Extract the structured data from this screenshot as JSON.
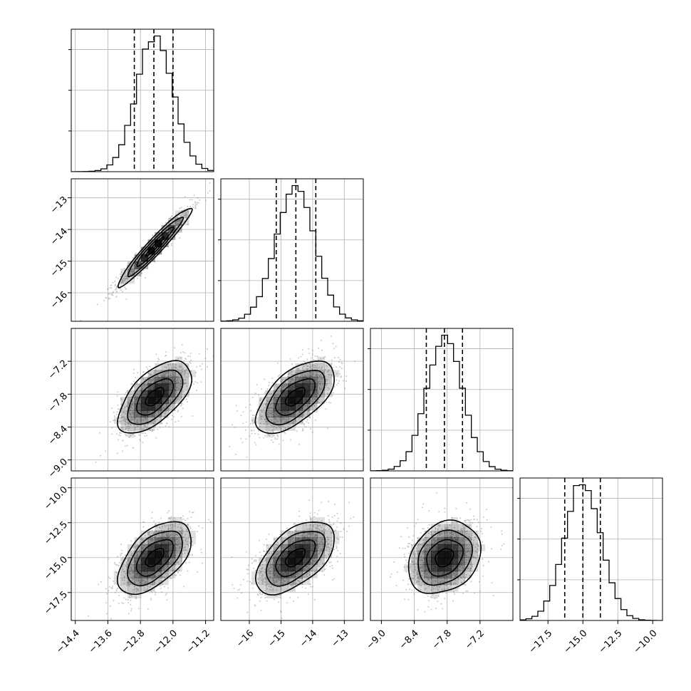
{
  "chart_data": {
    "type": "corner",
    "variables": [
      {
        "range": [
          -14.5,
          -11.0
        ],
        "ticks": [
          -14.4,
          -13.6,
          -12.8,
          -12.0,
          -11.2
        ],
        "tick_labels": [
          "−14.4",
          "−13.6",
          "−12.8",
          "−12.0",
          "−11.2"
        ],
        "mean": -12.45,
        "sd": 0.45,
        "quantiles": [
          -12.95,
          -12.47,
          -12.0
        ]
      },
      {
        "range": [
          -16.9,
          -12.4
        ],
        "ticks": [
          -16,
          -15,
          -14,
          -13
        ],
        "tick_labels": [
          "−16",
          "−15",
          "−14",
          "−13"
        ],
        "mean": -14.55,
        "sd": 0.62,
        "quantiles": [
          -15.15,
          -14.53,
          -13.9
        ]
      },
      {
        "range": [
          -9.2,
          -6.6
        ],
        "ticks": [
          -9.0,
          -8.4,
          -7.8,
          -7.2
        ],
        "tick_labels": [
          "−9.0",
          "−8.4",
          "−7.8",
          "−7.2"
        ],
        "mean": -7.85,
        "sd": 0.33,
        "quantiles": [
          -8.18,
          -7.85,
          -7.52
        ]
      },
      {
        "range": [
          -19.5,
          -9.3
        ],
        "ticks": [
          -17.5,
          -15.0,
          -12.5,
          -10.0
        ],
        "tick_labels": [
          "−17.5",
          "−15.0",
          "−12.5",
          "−10.0"
        ],
        "mean": -15.0,
        "sd": 1.3,
        "quantiles": [
          -16.3,
          -15.0,
          -13.75
        ]
      }
    ],
    "correlations": [
      [
        1.0,
        0.96,
        0.6,
        0.55
      ],
      [
        0.96,
        1.0,
        0.6,
        0.55
      ],
      [
        0.6,
        0.6,
        1.0,
        0.25
      ],
      [
        0.55,
        0.55,
        0.25,
        1.0
      ]
    ],
    "contour_levels_sigma": [
      0.5,
      1.0,
      1.5,
      2.0
    ],
    "quantile_line_style": "dashed",
    "grid": true,
    "colors": {
      "points": "#888888",
      "density": "#000000",
      "lines": "#000000",
      "grid": "#b0b0b0"
    }
  }
}
